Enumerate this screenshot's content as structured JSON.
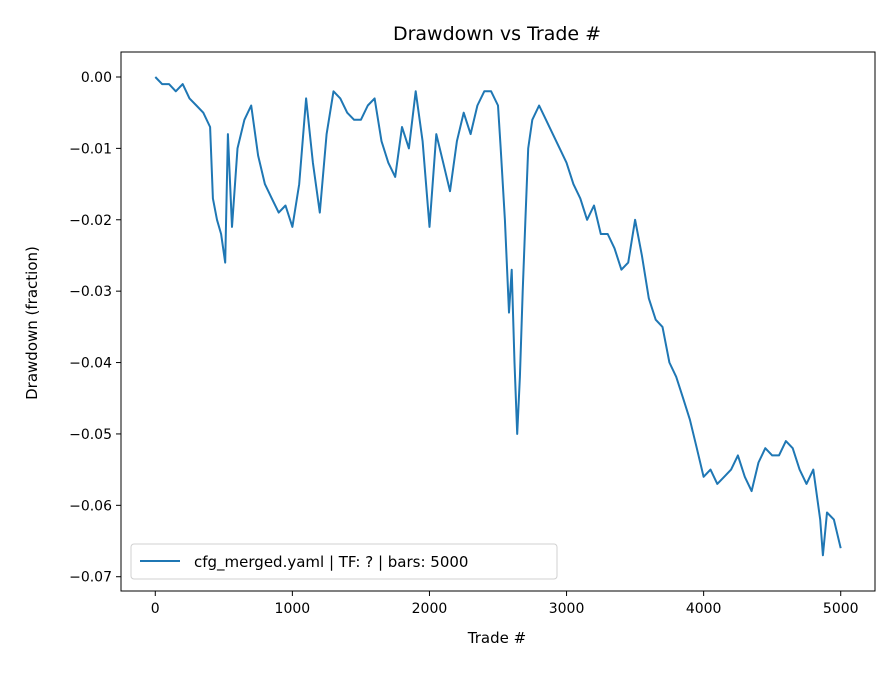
{
  "chart_data": {
    "type": "line",
    "title": "Drawdown vs Trade #",
    "xlabel": "Trade #",
    "ylabel": "Drawdown (fraction)",
    "xlim": [
      -250,
      5250
    ],
    "ylim": [
      -0.072,
      0.0035
    ],
    "xticks": [
      0,
      1000,
      2000,
      3000,
      4000,
      5000
    ],
    "xtick_labels": [
      "0",
      "1000",
      "2000",
      "3000",
      "4000",
      "5000"
    ],
    "yticks": [
      0.0,
      -0.01,
      -0.02,
      -0.03,
      -0.04,
      -0.05,
      -0.06,
      -0.07
    ],
    "ytick_labels": [
      "0.00",
      "−0.01",
      "−0.02",
      "−0.03",
      "−0.04",
      "−0.05",
      "−0.06",
      "−0.07"
    ],
    "grid": false,
    "legend_position": "lower-left",
    "color": "#1f77b4",
    "series": [
      {
        "name": "cfg_merged.yaml | TF: ? | bars: 5000",
        "x": [
          0,
          50,
          100,
          150,
          200,
          250,
          300,
          350,
          400,
          420,
          450,
          480,
          510,
          530,
          560,
          600,
          650,
          700,
          750,
          800,
          850,
          900,
          950,
          1000,
          1050,
          1100,
          1150,
          1200,
          1250,
          1300,
          1350,
          1400,
          1450,
          1500,
          1550,
          1600,
          1650,
          1700,
          1750,
          1800,
          1850,
          1900,
          1950,
          2000,
          2050,
          2100,
          2150,
          2200,
          2250,
          2300,
          2350,
          2400,
          2450,
          2500,
          2520,
          2550,
          2580,
          2600,
          2620,
          2640,
          2660,
          2680,
          2700,
          2720,
          2750,
          2800,
          2850,
          2900,
          2950,
          3000,
          3050,
          3100,
          3150,
          3200,
          3250,
          3300,
          3350,
          3400,
          3450,
          3500,
          3550,
          3600,
          3650,
          3700,
          3750,
          3800,
          3850,
          3900,
          3950,
          4000,
          4050,
          4100,
          4150,
          4200,
          4250,
          4300,
          4350,
          4400,
          4450,
          4500,
          4550,
          4600,
          4650,
          4700,
          4750,
          4800,
          4850,
          4870,
          4900,
          4950,
          5000
        ],
        "y": [
          0.0,
          -0.001,
          -0.001,
          -0.002,
          -0.001,
          -0.003,
          -0.004,
          -0.005,
          -0.007,
          -0.017,
          -0.02,
          -0.022,
          -0.026,
          -0.008,
          -0.021,
          -0.01,
          -0.006,
          -0.004,
          -0.011,
          -0.015,
          -0.017,
          -0.019,
          -0.018,
          -0.021,
          -0.015,
          -0.003,
          -0.012,
          -0.019,
          -0.008,
          -0.002,
          -0.003,
          -0.005,
          -0.006,
          -0.006,
          -0.004,
          -0.003,
          -0.009,
          -0.012,
          -0.014,
          -0.007,
          -0.01,
          -0.002,
          -0.009,
          -0.021,
          -0.008,
          -0.012,
          -0.016,
          -0.009,
          -0.005,
          -0.008,
          -0.004,
          -0.002,
          -0.002,
          -0.004,
          -0.01,
          -0.02,
          -0.033,
          -0.027,
          -0.04,
          -0.05,
          -0.042,
          -0.03,
          -0.02,
          -0.01,
          -0.006,
          -0.004,
          -0.006,
          -0.008,
          -0.01,
          -0.012,
          -0.015,
          -0.017,
          -0.02,
          -0.018,
          -0.022,
          -0.022,
          -0.024,
          -0.027,
          -0.026,
          -0.02,
          -0.025,
          -0.031,
          -0.034,
          -0.035,
          -0.04,
          -0.042,
          -0.045,
          -0.048,
          -0.052,
          -0.056,
          -0.055,
          -0.057,
          -0.056,
          -0.055,
          -0.053,
          -0.056,
          -0.058,
          -0.054,
          -0.052,
          -0.053,
          -0.053,
          -0.051,
          -0.052,
          -0.055,
          -0.057,
          -0.055,
          -0.062,
          -0.067,
          -0.061,
          -0.062,
          -0.066
        ]
      }
    ]
  }
}
